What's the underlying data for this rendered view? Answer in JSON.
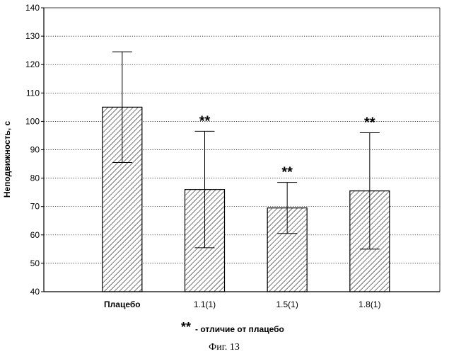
{
  "chart_data": {
    "type": "bar",
    "ylabel": "Неподвижность, с",
    "ylim": [
      40,
      140
    ],
    "yticks": [
      40,
      50,
      60,
      70,
      80,
      90,
      100,
      110,
      120,
      130,
      140
    ],
    "grid": true,
    "categories": [
      "Плацебо",
      "1.1(1)",
      "1.5(1)",
      "1.8(1)"
    ],
    "values": [
      105,
      76,
      69.5,
      75.5
    ],
    "error": [
      19.5,
      20.5,
      9,
      20.5
    ],
    "significance": [
      "",
      "**",
      "**",
      "**"
    ],
    "fill": "diagonal-hatch",
    "note": {
      "mark": "**",
      "text": "- отличие от плацебо"
    }
  },
  "caption": "Фиг. 13"
}
